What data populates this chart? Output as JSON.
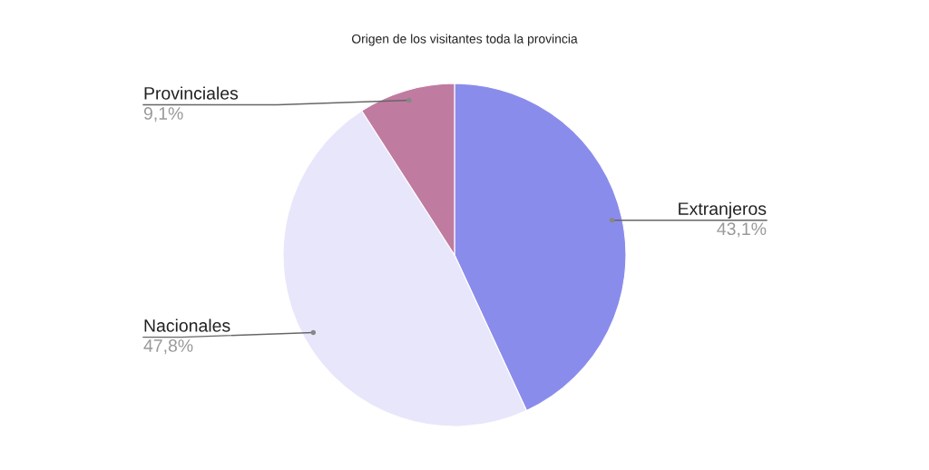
{
  "chart_data": {
    "type": "pie",
    "title": "Origen de los visitantes toda la provincia",
    "categories": [
      "Extranjeros",
      "Nacionales",
      "Provinciales"
    ],
    "values": [
      43.1,
      47.8,
      9.1
    ],
    "value_labels": [
      "43,1%",
      "47,8%",
      "9,1%"
    ],
    "colors": [
      "#8a8cec",
      "#e8e6fa",
      "#c07ba0"
    ],
    "legend": false
  }
}
